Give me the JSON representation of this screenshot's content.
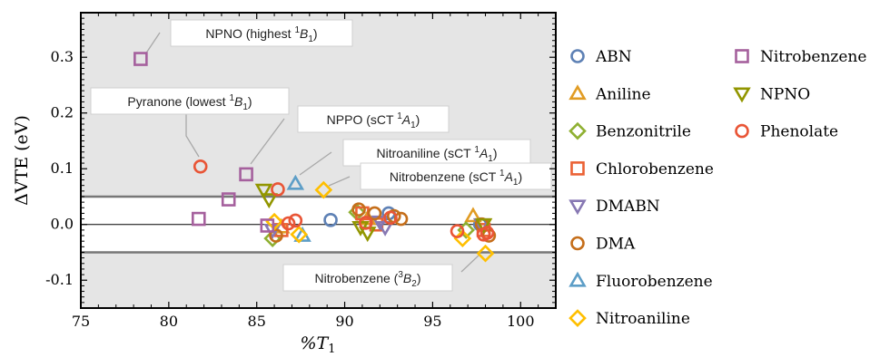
{
  "chart_data": {
    "type": "scatter",
    "xlabel": "%T1",
    "ylabel": "ΔVTE (eV)",
    "xlim": [
      75,
      102
    ],
    "ylim": [
      -0.15,
      0.38
    ],
    "x_ticks": [
      75,
      80,
      85,
      90,
      95,
      100
    ],
    "y_ticks": [
      -0.1,
      0.0,
      0.1,
      0.2,
      0.3
    ],
    "x_tick_labels": [
      "75",
      "80",
      "85",
      "90",
      "95",
      "100"
    ],
    "y_tick_labels": [
      "-0.1",
      "0.0",
      "0.1",
      "0.2",
      "0.3"
    ],
    "reference_lines": [
      0.05,
      0.0,
      -0.05
    ],
    "background_color": "#e5e5e5",
    "grid": false,
    "legend_position": "right",
    "series": [
      {
        "name": "ABN",
        "marker": "circle",
        "color": "#5e81b5",
        "points": [
          [
            89.2,
            0.008
          ],
          [
            92.5,
            0.02
          ],
          [
            97.7,
            0.0
          ]
        ]
      },
      {
        "name": "Aniline",
        "marker": "triangle-up",
        "color": "#e19c24",
        "points": [
          [
            86.4,
            -0.005
          ],
          [
            91.3,
            0.01
          ],
          [
            97.3,
            0.015
          ]
        ]
      },
      {
        "name": "Benzonitrile",
        "marker": "diamond",
        "color": "#8fb032",
        "points": [
          [
            85.9,
            -0.025
          ],
          [
            90.7,
            0.022
          ],
          [
            96.9,
            -0.01
          ]
        ]
      },
      {
        "name": "Chlorobenzene",
        "marker": "square",
        "color": "#eb6235",
        "points": [
          [
            86.4,
            -0.01
          ],
          [
            91.0,
            0.02
          ],
          [
            91.8,
            0.0
          ],
          [
            97.9,
            -0.01
          ]
        ]
      },
      {
        "name": "DMABN",
        "marker": "triangle-down",
        "color": "#8778b3",
        "points": [
          [
            85.9,
            -0.01
          ],
          [
            92.0,
            0.005
          ],
          [
            92.3,
            -0.005
          ],
          [
            97.8,
            0.0
          ]
        ]
      },
      {
        "name": "DMA",
        "marker": "circle",
        "color": "#c56e1a",
        "points": [
          [
            86.1,
            -0.02
          ],
          [
            90.8,
            0.027
          ],
          [
            91.7,
            0.02
          ],
          [
            92.8,
            0.015
          ],
          [
            93.2,
            0.01
          ],
          [
            97.8,
            0.0
          ],
          [
            98.2,
            -0.02
          ]
        ]
      },
      {
        "name": "Fluorobenzene",
        "marker": "triangle-up",
        "color": "#5d9ec7",
        "points": [
          [
            87.2,
            0.073
          ],
          [
            87.6,
            -0.02
          ]
        ]
      },
      {
        "name": "Nitroaniline",
        "marker": "diamond",
        "color": "#ffbf00",
        "points": [
          [
            86.0,
            0.005
          ],
          [
            87.4,
            -0.018
          ],
          [
            88.8,
            0.062
          ],
          [
            96.7,
            -0.025
          ],
          [
            98.0,
            -0.052
          ]
        ]
      },
      {
        "name": "Nitrobenzene",
        "marker": "square",
        "color": "#a5609d",
        "points": [
          [
            78.4,
            0.297
          ],
          [
            81.7,
            0.01
          ],
          [
            83.4,
            0.045
          ],
          [
            84.4,
            0.09
          ],
          [
            85.6,
            -0.002
          ]
        ]
      },
      {
        "name": "NPNO",
        "marker": "triangle-down",
        "color": "#929600",
        "points": [
          [
            85.4,
            0.062
          ],
          [
            85.7,
            0.045
          ],
          [
            90.9,
            -0.005
          ],
          [
            91.3,
            -0.015
          ],
          [
            97.9,
            0.0
          ]
        ]
      },
      {
        "name": "Phenolate",
        "marker": "circle",
        "color": "#e95536",
        "points": [
          [
            81.8,
            0.104
          ],
          [
            86.2,
            0.063
          ],
          [
            86.8,
            0.002
          ],
          [
            87.2,
            0.007
          ],
          [
            91.2,
            0.003
          ],
          [
            92.6,
            0.012
          ],
          [
            96.4,
            -0.012
          ],
          [
            97.9,
            -0.018
          ],
          [
            98.1,
            -0.015
          ]
        ]
      }
    ],
    "annotations": [
      {
        "id": "npno",
        "text_main": "NPNO (highest ",
        "text_sup": "1",
        "text_state": "B",
        "text_sub": "1",
        "text_close": ")",
        "target": [
          78.4,
          0.297
        ]
      },
      {
        "id": "pyranone",
        "text_main": "Pyranone (lowest ",
        "text_sup": "1",
        "text_state": "B",
        "text_sub": "1",
        "text_close": ")",
        "target": [
          81.8,
          0.104
        ]
      },
      {
        "id": "nppo",
        "text_main": "NPPO (sCT ",
        "text_sup": "1",
        "text_state": "A",
        "text_sub": "1",
        "text_close": ")",
        "target": [
          84.4,
          0.09
        ]
      },
      {
        "id": "nitroaniline",
        "text_main": "Nitroaniline (sCT ",
        "text_sup": "1",
        "text_state": "A",
        "text_sub": "1",
        "text_close": ")",
        "target": [
          87.2,
          0.073
        ]
      },
      {
        "id": "nitrobenzene-sct",
        "text_main": "Nitrobenzene (sCT ",
        "text_sup": "1",
        "text_state": "A",
        "text_sub": "1",
        "text_close": ")",
        "target": [
          88.8,
          0.062
        ]
      },
      {
        "id": "nitrobenzene-3b2",
        "text_main": "Nitrobenzene (",
        "text_sup": "3",
        "text_state": "B",
        "text_sub": "2",
        "text_close": ")",
        "target": [
          98.0,
          -0.052
        ]
      }
    ]
  }
}
